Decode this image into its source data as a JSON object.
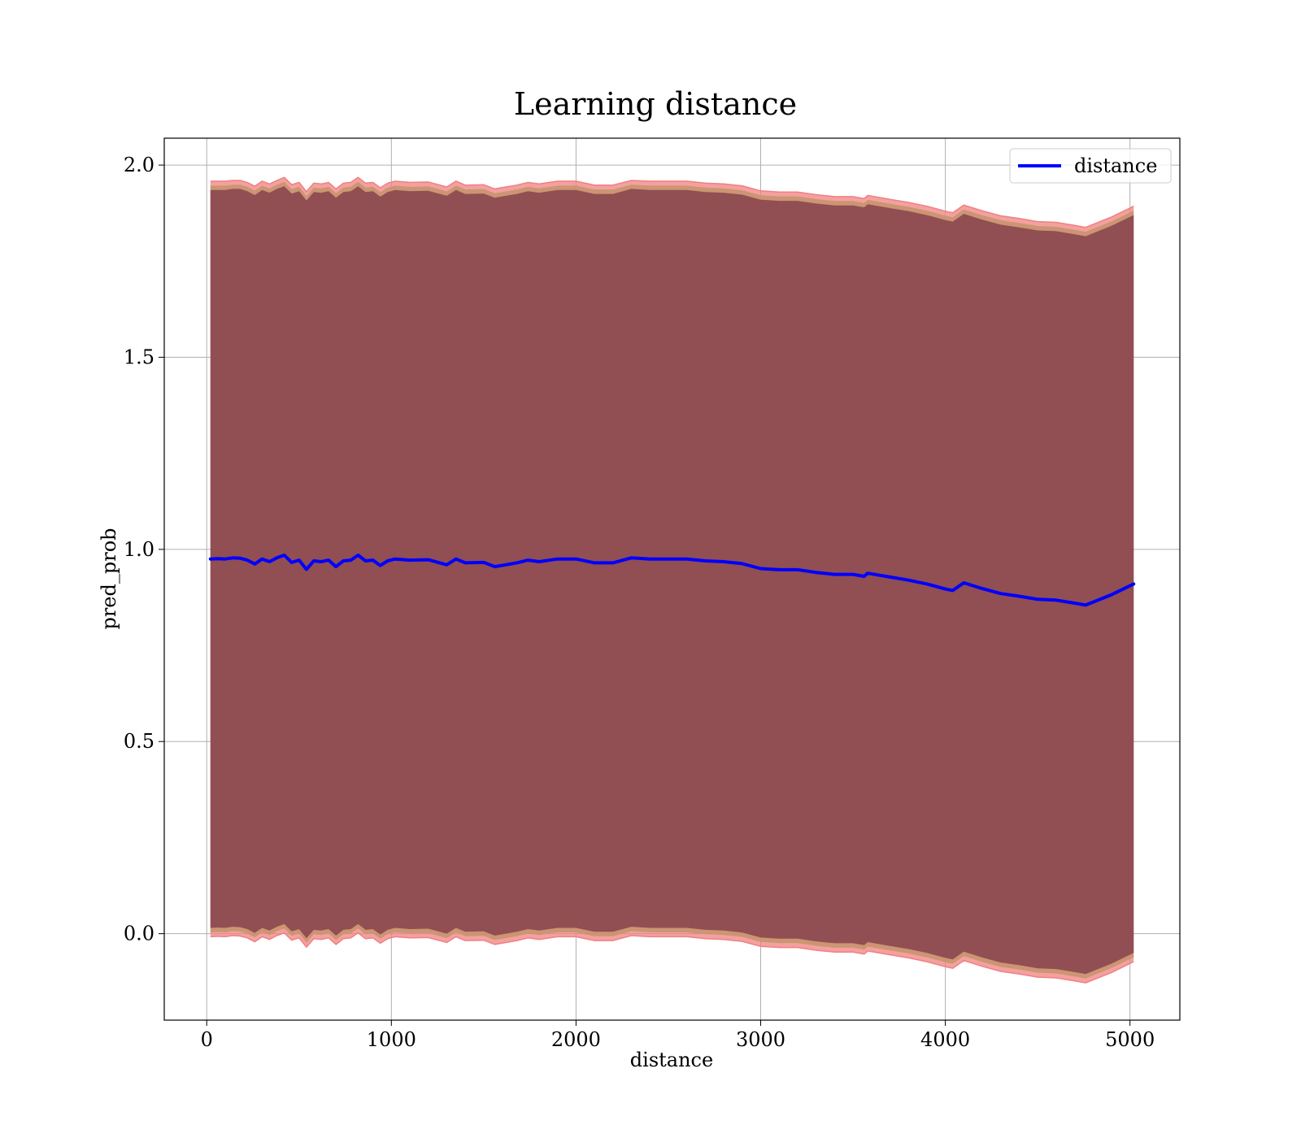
{
  "chart_data": {
    "type": "line",
    "title": "Learning distance",
    "xlabel": "distance",
    "ylabel": "pred_prob",
    "xlim": [
      -230,
      5270
    ],
    "ylim": [
      -0.225,
      2.07
    ],
    "x_ticks": [
      0,
      1000,
      2000,
      3000,
      4000,
      5000
    ],
    "x_tick_labels": [
      "0",
      "1000",
      "2000",
      "3000",
      "4000",
      "5000"
    ],
    "y_ticks": [
      0.0,
      0.5,
      1.0,
      1.5,
      2.0
    ],
    "y_tick_labels": [
      "0.0",
      "0.5",
      "1.0",
      "1.5",
      "2.0"
    ],
    "grid": true,
    "legend_position": "upper right",
    "colors": {
      "line": "#0000ff",
      "band_inner": "#7a3346",
      "band_outer": "#f08080",
      "band_mid": "#c8946e"
    },
    "series": [
      {
        "name": "distance",
        "x": [
          20,
          60,
          100,
          140,
          180,
          220,
          260,
          300,
          340,
          380,
          420,
          460,
          500,
          540,
          580,
          620,
          660,
          700,
          740,
          780,
          820,
          860,
          900,
          940,
          980,
          1020,
          1100,
          1200,
          1300,
          1350,
          1400,
          1500,
          1560,
          1620,
          1680,
          1740,
          1800,
          1900,
          2000,
          2100,
          2200,
          2300,
          2400,
          2500,
          2600,
          2700,
          2800,
          2900,
          3000,
          3100,
          3200,
          3300,
          3400,
          3500,
          3560,
          3580,
          3700,
          3800,
          3900,
          4000,
          4040,
          4100,
          4200,
          4300,
          4400,
          4500,
          4600,
          4700,
          4760,
          4900,
          5020
        ],
        "y": [
          0.975,
          0.976,
          0.975,
          0.978,
          0.977,
          0.972,
          0.962,
          0.975,
          0.968,
          0.978,
          0.985,
          0.966,
          0.972,
          0.948,
          0.97,
          0.968,
          0.972,
          0.955,
          0.97,
          0.972,
          0.985,
          0.97,
          0.972,
          0.958,
          0.97,
          0.975,
          0.972,
          0.973,
          0.96,
          0.975,
          0.965,
          0.966,
          0.955,
          0.96,
          0.965,
          0.972,
          0.968,
          0.975,
          0.975,
          0.965,
          0.965,
          0.978,
          0.975,
          0.975,
          0.975,
          0.97,
          0.968,
          0.963,
          0.95,
          0.947,
          0.947,
          0.94,
          0.935,
          0.935,
          0.93,
          0.938,
          0.928,
          0.92,
          0.91,
          0.897,
          0.893,
          0.913,
          0.898,
          0.885,
          0.878,
          0.87,
          0.868,
          0.86,
          0.855,
          0.882,
          0.91
        ]
      }
    ],
    "band": {
      "upper_inner": [
        1.935,
        1.935,
        1.935,
        1.938,
        1.938,
        1.932,
        1.922,
        1.935,
        1.928,
        1.938,
        1.945,
        1.926,
        1.932,
        1.908,
        1.93,
        1.928,
        1.932,
        1.915,
        1.93,
        1.932,
        1.945,
        1.93,
        1.932,
        1.918,
        1.93,
        1.935,
        1.932,
        1.933,
        1.92,
        1.935,
        1.925,
        1.926,
        1.915,
        1.92,
        1.925,
        1.932,
        1.928,
        1.935,
        1.935,
        1.925,
        1.925,
        1.938,
        1.935,
        1.935,
        1.935,
        1.93,
        1.928,
        1.923,
        1.91,
        1.907,
        1.907,
        1.9,
        1.895,
        1.895,
        1.89,
        1.898,
        1.888,
        1.88,
        1.87,
        1.857,
        1.853,
        1.873,
        1.858,
        1.845,
        1.838,
        1.83,
        1.828,
        1.82,
        1.815,
        1.842,
        1.87
      ],
      "upper_outer": [
        1.958,
        1.958,
        1.958,
        1.96,
        1.96,
        1.955,
        1.945,
        1.958,
        1.951,
        1.96,
        1.968,
        1.949,
        1.955,
        1.931,
        1.953,
        1.951,
        1.955,
        1.938,
        1.953,
        1.955,
        1.968,
        1.953,
        1.955,
        1.941,
        1.953,
        1.958,
        1.955,
        1.956,
        1.943,
        1.958,
        1.948,
        1.949,
        1.938,
        1.943,
        1.948,
        1.955,
        1.951,
        1.958,
        1.958,
        1.948,
        1.948,
        1.96,
        1.958,
        1.958,
        1.958,
        1.953,
        1.951,
        1.946,
        1.933,
        1.93,
        1.93,
        1.923,
        1.918,
        1.918,
        1.913,
        1.921,
        1.911,
        1.903,
        1.893,
        1.88,
        1.876,
        1.896,
        1.881,
        1.868,
        1.861,
        1.853,
        1.851,
        1.843,
        1.838,
        1.865,
        1.893
      ],
      "lower_inner": [
        0.015,
        0.016,
        0.015,
        0.018,
        0.017,
        0.012,
        0.002,
        0.015,
        0.008,
        0.018,
        0.025,
        0.006,
        0.012,
        -0.012,
        0.01,
        0.008,
        0.012,
        -0.005,
        0.01,
        0.012,
        0.025,
        0.01,
        0.012,
        -0.002,
        0.01,
        0.015,
        0.012,
        0.013,
        0.0,
        0.015,
        0.005,
        0.006,
        -0.005,
        0.0,
        0.005,
        0.012,
        0.008,
        0.015,
        0.015,
        0.005,
        0.005,
        0.018,
        0.015,
        0.015,
        0.015,
        0.01,
        0.008,
        0.003,
        -0.01,
        -0.013,
        -0.013,
        -0.02,
        -0.025,
        -0.025,
        -0.03,
        -0.022,
        -0.032,
        -0.04,
        -0.05,
        -0.063,
        -0.067,
        -0.047,
        -0.062,
        -0.075,
        -0.082,
        -0.09,
        -0.092,
        -0.1,
        -0.105,
        -0.078,
        -0.05
      ],
      "lower_outer": [
        -0.008,
        -0.007,
        -0.008,
        -0.005,
        -0.006,
        -0.011,
        -0.021,
        -0.008,
        -0.015,
        -0.005,
        0.002,
        -0.017,
        -0.011,
        -0.035,
        -0.013,
        -0.015,
        -0.011,
        -0.028,
        -0.013,
        -0.011,
        0.002,
        -0.013,
        -0.011,
        -0.025,
        -0.013,
        -0.008,
        -0.011,
        -0.01,
        -0.023,
        -0.008,
        -0.018,
        -0.017,
        -0.028,
        -0.023,
        -0.018,
        -0.011,
        -0.015,
        -0.008,
        -0.008,
        -0.018,
        -0.018,
        -0.005,
        -0.008,
        -0.008,
        -0.008,
        -0.013,
        -0.015,
        -0.02,
        -0.033,
        -0.036,
        -0.036,
        -0.043,
        -0.048,
        -0.048,
        -0.053,
        -0.045,
        -0.055,
        -0.063,
        -0.073,
        -0.086,
        -0.09,
        -0.07,
        -0.085,
        -0.098,
        -0.105,
        -0.113,
        -0.115,
        -0.123,
        -0.128,
        -0.101,
        -0.073
      ]
    }
  }
}
